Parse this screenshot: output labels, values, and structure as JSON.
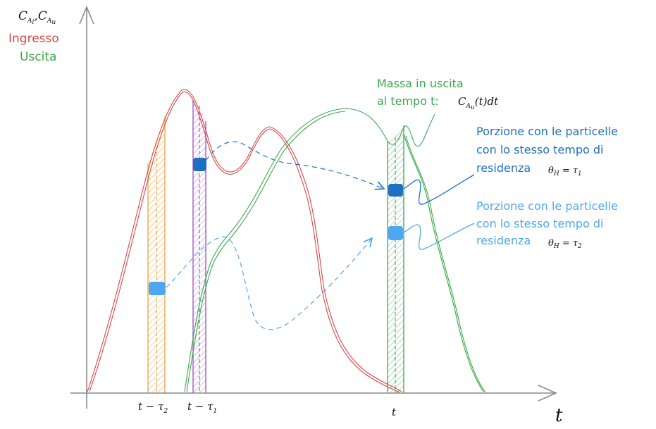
{
  "axes": {
    "y_label_main": "C",
    "y_label_sub1": "A",
    "y_label_sub1b": "i",
    "y_label_sep": ",",
    "y_label_sub2": "A",
    "y_label_sub2b": "u",
    "x_label": "t"
  },
  "legend": {
    "input": "Ingresso",
    "output": "Uscita"
  },
  "colors": {
    "input": "#d94646",
    "output": "#3aa84a",
    "axis": "#8a8a8a",
    "dark_blue": "#1f6fc2",
    "light_blue": "#4da8f0",
    "orange": "#f0a040",
    "purple": "#9b4fc6"
  },
  "ticks": {
    "t_minus_tau2": "t − τ",
    "tau2_sub": "2",
    "t_minus_tau1": "t − τ",
    "tau1_sub": "1",
    "t": "t"
  },
  "mass_note": {
    "line1": "Massa in uscita",
    "line2": "al tempo t:",
    "formula_c": "C",
    "formula_sub_a": "A",
    "formula_sub_u": "u",
    "formula_rest": "(t)dt"
  },
  "portion1": {
    "line1": "Porzione con le particelle",
    "line2": "con lo stesso tempo di",
    "line3": "residenza",
    "formula": "θ",
    "formula_sub": "H",
    "formula_rest": " = τ",
    "formula_sub2": "1"
  },
  "portion2": {
    "line1": "Porzione con le particelle",
    "line2": "con lo stesso tempo di",
    "line3": "residenza",
    "formula": "θ",
    "formula_sub": "H",
    "formula_rest": " = τ",
    "formula_sub2": "2"
  }
}
